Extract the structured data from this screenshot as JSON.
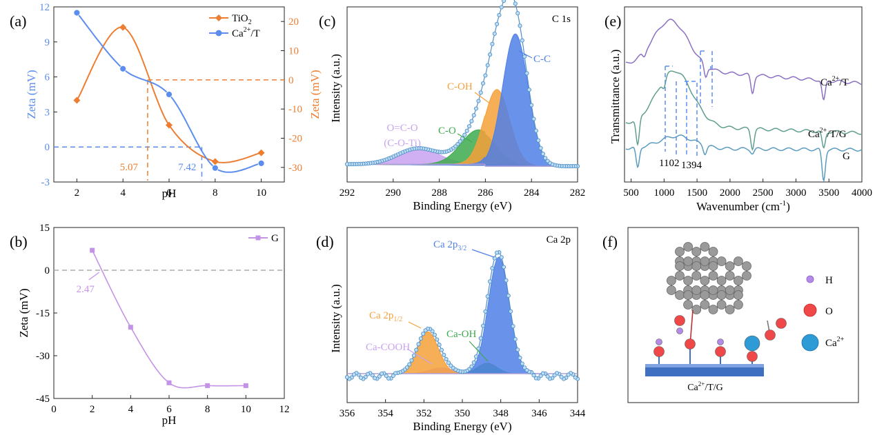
{
  "colors": {
    "tio2": "#ED7D31",
    "ca_t": "#5B8DEF",
    "g_zeta": "#C393E8",
    "cc": "#4F7FE8",
    "coh": "#F5A03A",
    "co": "#3DAA4E",
    "occo": "#C8A2F0",
    "envelope": "#4E90C8",
    "ir_cat": "#8A6FC2",
    "ir_catg": "#5F9E8E",
    "ir_g": "#5A9BBF",
    "dashed": "#5B8DEF"
  },
  "chart_data": [
    {
      "id": "a",
      "panel_label": "(a)",
      "type": "line",
      "xlabel": "pH",
      "ylabel": "Zeta (mV)",
      "ylabel_right": "Zeta (mV)",
      "xlim": [
        1,
        11
      ],
      "ylim": [
        -3,
        12
      ],
      "ylim_right": [
        -35,
        25
      ],
      "xticks": [
        "2",
        "4",
        "6",
        "8",
        "10"
      ],
      "yticks": [
        "-3",
        "0",
        "3",
        "6",
        "9",
        "12"
      ],
      "yticks_right": [
        "-30",
        "-20",
        "-10",
        "0",
        "10",
        "20"
      ],
      "series": [
        {
          "name": "TiO",
          "name_sub": "2",
          "axis": "right",
          "marker": "diamond",
          "x": [
            2,
            4,
            6,
            8,
            10
          ],
          "y": [
            -7,
            18,
            -15.5,
            -28,
            -25
          ]
        },
        {
          "name": "Ca",
          "name_sup": "2+",
          "name_tail": "/T",
          "axis": "left",
          "marker": "circle",
          "x": [
            2,
            4,
            6,
            8,
            10
          ],
          "y": [
            11.5,
            6.7,
            4.5,
            -1.8,
            -1.4
          ]
        }
      ],
      "annotations": [
        {
          "text": "5.07",
          "x": 5.07,
          "color": "tio2"
        },
        {
          "text": "7.42",
          "x": 7.42,
          "color": "ca_t"
        }
      ]
    },
    {
      "id": "b",
      "panel_label": "(b)",
      "type": "line",
      "xlabel": "pH",
      "ylabel": "Zeta (mV)",
      "xlim": [
        0,
        12
      ],
      "ylim": [
        -45,
        15
      ],
      "xticks": [
        "0",
        "2",
        "4",
        "6",
        "8",
        "10",
        "12"
      ],
      "yticks": [
        "-45",
        "-30",
        "-15",
        "0",
        "15"
      ],
      "series": [
        {
          "name": "G",
          "marker": "square",
          "x": [
            2,
            4,
            6,
            8,
            10
          ],
          "y": [
            7,
            -20,
            -39.5,
            -40.5,
            -40.5
          ]
        }
      ],
      "annotations": [
        {
          "text": "2.47",
          "x": 2.47
        }
      ]
    },
    {
      "id": "c",
      "panel_label": "(c)",
      "type": "area",
      "title": "C 1s",
      "xlabel": "Binding Energy (eV)",
      "ylabel": "Intensity (a.u.)",
      "xlim": [
        292,
        282
      ],
      "xticks": [
        "292",
        "290",
        "288",
        "286",
        "284",
        "282"
      ],
      "peaks": [
        {
          "name": "C-C",
          "center": 284.7,
          "height": 100,
          "width": 0.55
        },
        {
          "name": "C-OH",
          "center": 285.5,
          "height": 58,
          "width": 0.55
        },
        {
          "name": "C-O",
          "center": 286.3,
          "height": 26,
          "width": 0.75
        },
        {
          "name": "O=C-O",
          "name_line2": "(C-O-Ti)",
          "center": 288.9,
          "height": 12,
          "width": 0.9
        }
      ]
    },
    {
      "id": "d",
      "panel_label": "(d)",
      "type": "area",
      "title": "Ca 2p",
      "xlabel": "Binding Energy (eV)",
      "ylabel": "Intensity (a.u.)",
      "xlim": [
        356,
        344
      ],
      "xticks": [
        "356",
        "354",
        "352",
        "350",
        "348",
        "346",
        "344"
      ],
      "peaks": [
        {
          "name": "Ca 2p",
          "name_sub": "3/2",
          "center": 348.1,
          "height": 100,
          "width": 0.55
        },
        {
          "name": "Ca 2p",
          "name_sub": "1/2",
          "center": 351.8,
          "height": 36,
          "width": 0.55
        },
        {
          "name": "Ca-OH",
          "center": 348.7,
          "height": 9,
          "width": 0.5
        },
        {
          "name": "Ca-COOH",
          "center": 351.1,
          "height": 5,
          "width": 0.6
        }
      ]
    },
    {
      "id": "e",
      "panel_label": "(e)",
      "type": "line",
      "xlabel": "Wavenumber (cm",
      "xlabel_sup": "-1",
      "xlabel_tail": ")",
      "ylabel": "Transmittance (a.u.)",
      "xlim": [
        400,
        4000
      ],
      "xticks": [
        "500",
        "1000",
        "1500",
        "2000",
        "2500",
        "3000",
        "3500",
        "4000"
      ],
      "series": [
        {
          "name": "Ca",
          "name_sup": "2+",
          "name_tail": "/T"
        },
        {
          "name": "Ca",
          "name_sup": "2+",
          "name_tail": "/T/G"
        },
        {
          "name": "G"
        }
      ],
      "annotations": [
        {
          "text": "1102",
          "x": 1102
        },
        {
          "text": "1394",
          "x": 1394
        }
      ]
    }
  ],
  "schematic": {
    "panel_label": "(f)",
    "legend": [
      {
        "label": "H",
        "color": "#B58BE8"
      },
      {
        "label": "O",
        "color": "#F04848"
      },
      {
        "label": "Ca",
        "sup": "2+",
        "color": "#2E9BD6"
      }
    ],
    "substrate_label": "Ca",
    "substrate_sup": "2+",
    "substrate_tail": "/T/G"
  }
}
